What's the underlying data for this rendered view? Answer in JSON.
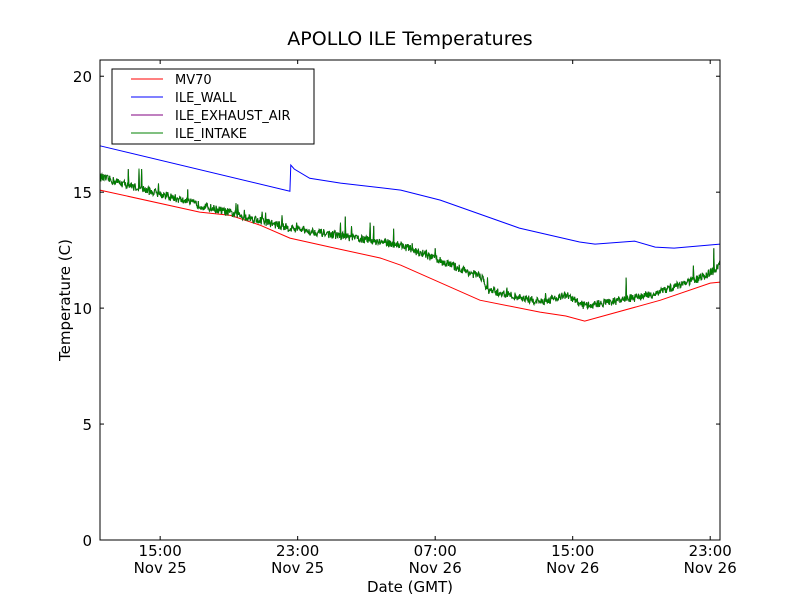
{
  "chart_data": {
    "type": "line",
    "title": "APOLLO ILE Temperatures",
    "xlabel": "Date (GMT)",
    "ylabel": "Temperature (C)",
    "x_units": "hours since Nov 25 11:30 GMT",
    "xlim": [
      0,
      36.07
    ],
    "ylim": [
      0,
      20.7
    ],
    "yticks": [
      0,
      5,
      10,
      15,
      20
    ],
    "xticks": [
      {
        "x": 3.5,
        "time": "15:00",
        "date": "Nov 25"
      },
      {
        "x": 11.5,
        "time": "23:00",
        "date": "Nov 25"
      },
      {
        "x": 19.5,
        "time": "07:00",
        "date": "Nov 26"
      },
      {
        "x": 27.5,
        "time": "15:00",
        "date": "Nov 26"
      },
      {
        "x": 35.5,
        "time": "23:00",
        "date": "Nov 26"
      }
    ],
    "grid": false,
    "legend_position": "top-left",
    "series": [
      {
        "name": "MV70",
        "color": "#ff0000",
        "noisy": false,
        "x": [
          0,
          5.8,
          7.6,
          9.3,
          11.05,
          13.4,
          16.3,
          17.5,
          22.1,
          25.6,
          27.1,
          28.2,
          32.6,
          35.5,
          36.07
        ],
        "y": [
          15.09,
          14.14,
          14.0,
          13.58,
          13.02,
          12.63,
          12.16,
          11.85,
          10.34,
          9.83,
          9.66,
          9.44,
          10.34,
          11.08,
          11.12
        ]
      },
      {
        "name": "ILE_WALL",
        "color": "#0000ff",
        "noisy": false,
        "x": [
          0,
          11.05,
          11.1,
          11.3,
          12.2,
          14.0,
          17.5,
          19.8,
          24.4,
          27.9,
          28.8,
          31.1,
          32.3,
          33.4,
          36.07
        ],
        "y": [
          17.0,
          15.04,
          16.17,
          16.0,
          15.6,
          15.39,
          15.09,
          14.66,
          13.45,
          12.85,
          12.76,
          12.89,
          12.63,
          12.59,
          12.76
        ]
      },
      {
        "name": "ILE_EXHAUST_AIR",
        "color": "#800080",
        "noisy": true,
        "x": [
          0,
          5.8,
          11.05,
          17.5,
          22.3,
          22.5,
          25.6,
          27.1,
          28.2,
          32.0,
          34.9,
          35.8,
          36.07
        ],
        "y": [
          15.65,
          14.44,
          13.45,
          12.72,
          11.3,
          10.78,
          10.26,
          10.56,
          10.09,
          10.56,
          11.3,
          11.64,
          11.98
        ]
      },
      {
        "name": "ILE_INTAKE",
        "color": "#008000",
        "noisy": true,
        "x": [
          0,
          5.8,
          11.05,
          17.5,
          22.3,
          22.5,
          25.6,
          27.1,
          28.2,
          32.0,
          34.9,
          35.8,
          36.07
        ],
        "y": [
          15.65,
          14.44,
          13.45,
          12.72,
          11.3,
          10.78,
          10.26,
          10.56,
          10.09,
          10.56,
          11.3,
          11.64,
          11.98
        ]
      }
    ]
  }
}
